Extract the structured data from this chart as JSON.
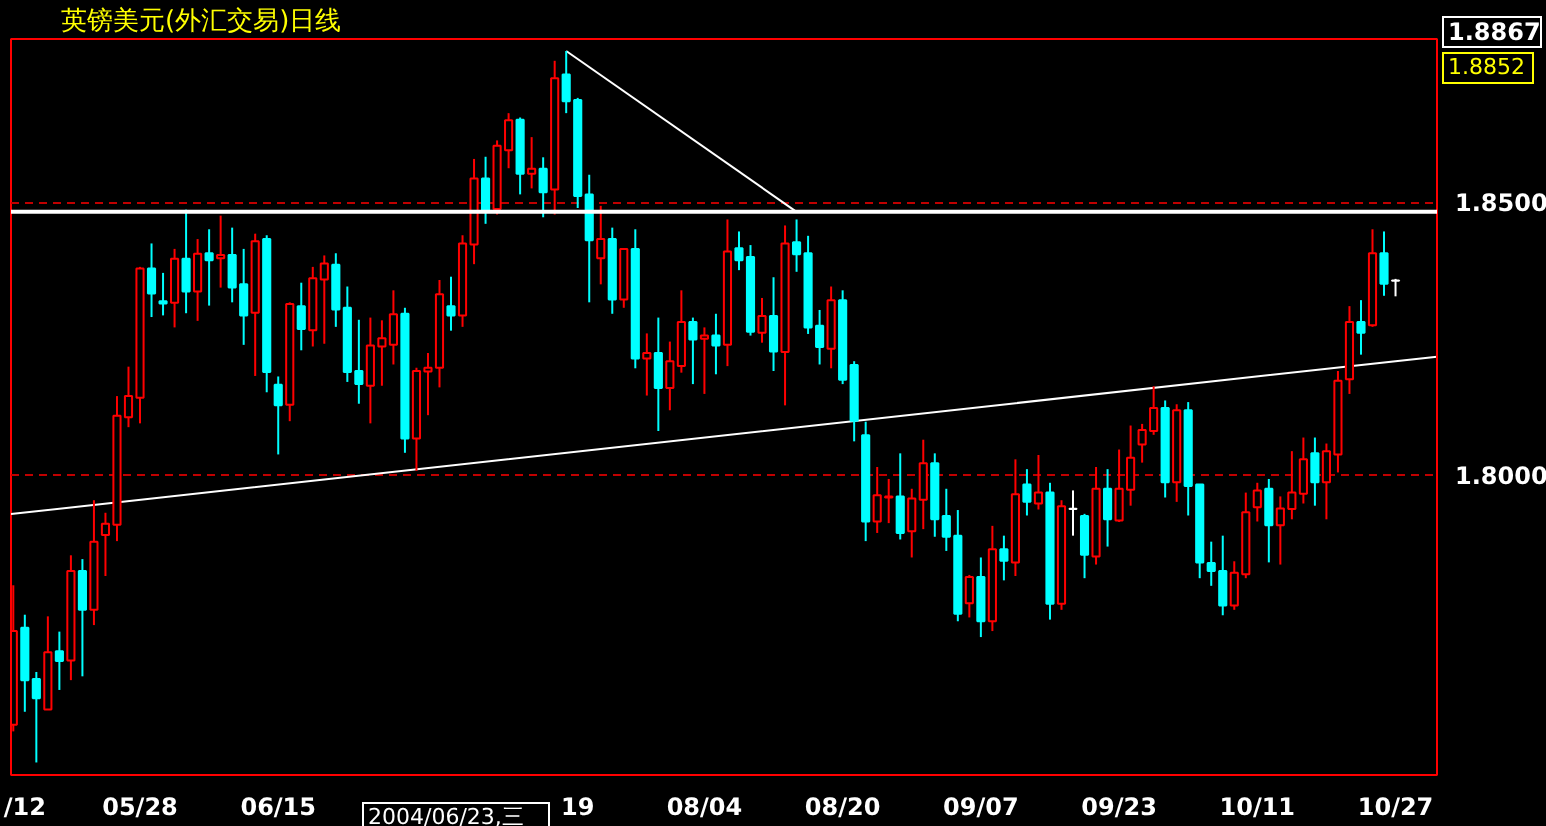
{
  "chart_data": {
    "type": "candlestick",
    "title": "英镑美元(外汇交易)日线",
    "categories": [
      null,
      "/12",
      null,
      null,
      null,
      null,
      null,
      null,
      null,
      null,
      null,
      "05/28",
      null,
      null,
      null,
      null,
      null,
      null,
      null,
      null,
      null,
      null,
      null,
      "06/15",
      null,
      null,
      null,
      null,
      null,
      null,
      null,
      null,
      null,
      null,
      null,
      null,
      null,
      null,
      null,
      null,
      null,
      null,
      null,
      null,
      null,
      null,
      null,
      null,
      null,
      "19",
      null,
      null,
      null,
      null,
      null,
      null,
      null,
      null,
      null,
      null,
      "08/04",
      null,
      null,
      null,
      null,
      null,
      null,
      null,
      null,
      null,
      null,
      null,
      "08/20",
      null,
      null,
      null,
      null,
      null,
      null,
      null,
      null,
      null,
      null,
      null,
      "09/07",
      null,
      null,
      null,
      null,
      null,
      null,
      null,
      null,
      null,
      null,
      null,
      "09/23",
      null,
      null,
      null,
      null,
      null,
      null,
      null,
      null,
      null,
      null,
      null,
      "10/11",
      null,
      null,
      null,
      null,
      null,
      null,
      null,
      null,
      null,
      null,
      null,
      "10/27"
    ],
    "ohlc": [
      [
        1.7541,
        1.7797,
        1.7529,
        1.7713
      ],
      [
        1.7719,
        1.7743,
        1.7565,
        1.7623
      ],
      [
        1.7625,
        1.7638,
        1.7472,
        1.759
      ],
      [
        1.7569,
        1.774,
        1.7569,
        1.7674
      ],
      [
        1.7676,
        1.7712,
        1.7605,
        1.7658
      ],
      [
        1.7659,
        1.7852,
        1.7623,
        1.7823
      ],
      [
        1.7823,
        1.7845,
        1.763,
        1.7752
      ],
      [
        1.7752,
        1.7953,
        1.7724,
        1.7877
      ],
      [
        1.7889,
        1.793,
        1.7814,
        1.791
      ],
      [
        1.7908,
        1.8144,
        1.7878,
        1.8108
      ],
      [
        1.8105,
        1.8198,
        1.8087,
        1.8144
      ],
      [
        1.8141,
        1.8381,
        1.8094,
        1.8378
      ],
      [
        1.8378,
        1.8424,
        1.8289,
        1.8332
      ],
      [
        1.8318,
        1.837,
        1.8292,
        1.8314
      ],
      [
        1.8315,
        1.8414,
        1.827,
        1.8396
      ],
      [
        1.8396,
        1.8486,
        1.8296,
        1.8336
      ],
      [
        1.8336,
        1.8432,
        1.8282,
        1.8405
      ],
      [
        1.8406,
        1.845,
        1.831,
        1.8393
      ],
      [
        1.8397,
        1.8475,
        1.8343,
        1.8403
      ],
      [
        1.8403,
        1.8453,
        1.8316,
        1.8343
      ],
      [
        1.8349,
        1.8414,
        1.8238,
        1.8292
      ],
      [
        1.8297,
        1.8442,
        1.8181,
        1.8428
      ],
      [
        1.8432,
        1.8439,
        1.8151,
        1.8188
      ],
      [
        1.8165,
        1.818,
        1.8037,
        1.8127
      ],
      [
        1.8128,
        1.8316,
        1.8098,
        1.8313
      ],
      [
        1.8309,
        1.8352,
        1.8228,
        1.8267
      ],
      [
        1.8265,
        1.8381,
        1.8235,
        1.836
      ],
      [
        1.8358,
        1.8402,
        1.824,
        1.8387
      ],
      [
        1.8385,
        1.8406,
        1.8271,
        1.8303
      ],
      [
        1.8306,
        1.8345,
        1.817,
        1.8188
      ],
      [
        1.819,
        1.8284,
        1.813,
        1.8166
      ],
      [
        1.8163,
        1.8288,
        1.8094,
        1.8237
      ],
      [
        1.8235,
        1.8283,
        1.8163,
        1.825
      ],
      [
        1.8238,
        1.8338,
        1.8202,
        1.8294
      ],
      [
        1.8295,
        1.8306,
        1.804,
        1.8066
      ],
      [
        1.8066,
        1.8196,
        1.8007,
        1.819
      ],
      [
        1.8189,
        1.8223,
        1.8109,
        1.8196
      ],
      [
        1.8196,
        1.8357,
        1.816,
        1.8331
      ],
      [
        1.8309,
        1.8363,
        1.8264,
        1.8292
      ],
      [
        1.8292,
        1.8439,
        1.8271,
        1.8424
      ],
      [
        1.8422,
        1.8579,
        1.8386,
        1.8543
      ],
      [
        1.8543,
        1.8583,
        1.846,
        1.8484
      ],
      [
        1.8487,
        1.8613,
        1.8477,
        1.8603
      ],
      [
        1.8595,
        1.8663,
        1.8562,
        1.865
      ],
      [
        1.8651,
        1.8655,
        1.8514,
        1.8552
      ],
      [
        1.8552,
        1.8619,
        1.8525,
        1.8561
      ],
      [
        1.8561,
        1.8582,
        1.8472,
        1.8518
      ],
      [
        1.8523,
        1.8759,
        1.8477,
        1.8727
      ],
      [
        1.8734,
        1.8777,
        1.8663,
        1.8685
      ],
      [
        1.8687,
        1.8691,
        1.8489,
        1.8511
      ],
      [
        1.8514,
        1.855,
        1.8316,
        1.843
      ],
      [
        1.8397,
        1.8493,
        1.8349,
        1.8432
      ],
      [
        1.8432,
        1.8453,
        1.8295,
        1.8321
      ],
      [
        1.8321,
        1.8414,
        1.8306,
        1.8414
      ],
      [
        1.8414,
        1.845,
        1.8195,
        1.8213
      ],
      [
        1.8213,
        1.8259,
        1.8145,
        1.8223
      ],
      [
        1.8223,
        1.8288,
        1.808,
        1.8159
      ],
      [
        1.8159,
        1.8244,
        1.8118,
        1.8208
      ],
      [
        1.8199,
        1.8338,
        1.8187,
        1.828
      ],
      [
        1.828,
        1.8288,
        1.8166,
        1.8248
      ],
      [
        1.8249,
        1.827,
        1.8148,
        1.8255
      ],
      [
        1.8255,
        1.8295,
        1.8184,
        1.8237
      ],
      [
        1.8238,
        1.8468,
        1.8199,
        1.8409
      ],
      [
        1.8415,
        1.8446,
        1.8375,
        1.8393
      ],
      [
        1.8399,
        1.8421,
        1.8255,
        1.8262
      ],
      [
        1.826,
        1.8324,
        1.8242,
        1.8291
      ],
      [
        1.8291,
        1.8362,
        1.819,
        1.8226
      ],
      [
        1.8225,
        1.8457,
        1.8127,
        1.8424
      ],
      [
        1.8426,
        1.8468,
        1.8372,
        1.8404
      ],
      [
        1.8406,
        1.8438,
        1.8258,
        1.827
      ],
      [
        1.8273,
        1.8302,
        1.8202,
        1.8234
      ],
      [
        1.8231,
        1.8345,
        1.8195,
        1.832
      ],
      [
        1.832,
        1.8338,
        1.8166,
        1.8174
      ],
      [
        1.8201,
        1.8208,
        1.8061,
        1.8099
      ],
      [
        1.8072,
        1.8097,
        1.7878,
        1.7914
      ],
      [
        1.7914,
        1.8014,
        1.7893,
        1.7962
      ],
      [
        1.7958,
        1.7992,
        1.7911,
        1.796
      ],
      [
        1.796,
        1.8039,
        1.7881,
        1.7893
      ],
      [
        1.7896,
        1.7974,
        1.7848,
        1.7956
      ],
      [
        1.7954,
        1.8064,
        1.79,
        1.8021
      ],
      [
        1.8021,
        1.8039,
        1.7886,
        1.7918
      ],
      [
        1.7924,
        1.7974,
        1.786,
        1.7886
      ],
      [
        1.7888,
        1.7935,
        1.7731,
        1.7745
      ],
      [
        1.7764,
        1.7816,
        1.7738,
        1.7812
      ],
      [
        1.7812,
        1.7848,
        1.7702,
        1.7731
      ],
      [
        1.7731,
        1.7906,
        1.7713,
        1.7863
      ],
      [
        1.7863,
        1.7888,
        1.7806,
        1.7842
      ],
      [
        1.7839,
        1.8028,
        1.7814,
        1.7964
      ],
      [
        1.7982,
        1.801,
        1.7925,
        1.795
      ],
      [
        1.7947,
        1.8036,
        1.7936,
        1.7967
      ],
      [
        1.7967,
        1.7985,
        1.7734,
        1.7763
      ],
      [
        1.7763,
        1.7953,
        1.7752,
        1.7942
      ],
      [
        1.7937,
        1.7971,
        1.7888,
        1.7937
      ],
      [
        1.7924,
        1.7928,
        1.781,
        1.7853
      ],
      [
        1.785,
        1.8014,
        1.7835,
        1.7974
      ],
      [
        1.7974,
        1.801,
        1.7868,
        1.7918
      ],
      [
        1.7916,
        1.8046,
        1.7913,
        1.7974
      ],
      [
        1.7972,
        1.809,
        1.7943,
        1.8031
      ],
      [
        1.8055,
        1.8093,
        1.8022,
        1.8082
      ],
      [
        1.808,
        1.8162,
        1.8073,
        1.8122
      ],
      [
        1.8122,
        1.8136,
        1.7958,
        1.7986
      ],
      [
        1.7986,
        1.8129,
        1.795,
        1.8118
      ],
      [
        1.8118,
        1.8133,
        1.7925,
        1.7979
      ],
      [
        1.7982,
        1.7982,
        1.781,
        1.7839
      ],
      [
        1.7838,
        1.7877,
        1.7796,
        1.7823
      ],
      [
        1.7823,
        1.7888,
        1.7742,
        1.776
      ],
      [
        1.776,
        1.7841,
        1.7752,
        1.782
      ],
      [
        1.7817,
        1.7967,
        1.781,
        1.7931
      ],
      [
        1.794,
        1.7985,
        1.7914,
        1.7971
      ],
      [
        1.7974,
        1.7992,
        1.7839,
        1.7907
      ],
      [
        1.7907,
        1.796,
        1.7835,
        1.7938
      ],
      [
        1.7937,
        1.8043,
        1.7918,
        1.7967
      ],
      [
        1.7965,
        1.8068,
        1.7947,
        1.8028
      ],
      [
        1.8039,
        1.8068,
        1.7943,
        1.7986
      ],
      [
        1.7986,
        1.8057,
        1.7918,
        1.8043
      ],
      [
        1.8037,
        1.819,
        1.8004,
        1.8172
      ],
      [
        1.8175,
        1.8309,
        1.8148,
        1.828
      ],
      [
        1.828,
        1.832,
        1.822,
        1.826
      ],
      [
        1.8274,
        1.845,
        1.8271,
        1.8406
      ],
      [
        1.8406,
        1.8446,
        1.8328,
        1.835
      ],
      [
        1.8356,
        1.8359,
        1.8327,
        1.8356
      ]
    ],
    "colors": [
      "#ff0000",
      "#00ffff",
      "#00ffff",
      "#ff0000",
      "#00ffff",
      "#ff0000",
      "#00ffff",
      "#ff0000",
      "#ff0000",
      "#ff0000",
      "#ff0000",
      "#ff0000",
      "#00ffff",
      "#00ffff",
      "#ff0000",
      "#00ffff",
      "#ff0000",
      "#00ffff",
      "#ff0000",
      "#00ffff",
      "#00ffff",
      "#ff0000",
      "#00ffff",
      "#00ffff",
      "#ff0000",
      "#00ffff",
      "#ff0000",
      "#ff0000",
      "#00ffff",
      "#00ffff",
      "#00ffff",
      "#ff0000",
      "#ff0000",
      "#ff0000",
      "#00ffff",
      "#ff0000",
      "#ff0000",
      "#ff0000",
      "#00ffff",
      "#ff0000",
      "#ff0000",
      "#00ffff",
      "#ff0000",
      "#ff0000",
      "#00ffff",
      "#ff0000",
      "#00ffff",
      "#ff0000",
      "#00ffff",
      "#00ffff",
      "#00ffff",
      "#ff0000",
      "#00ffff",
      "#ff0000",
      "#00ffff",
      "#ff0000",
      "#00ffff",
      "#ff0000",
      "#ff0000",
      "#00ffff",
      "#ff0000",
      "#00ffff",
      "#ff0000",
      "#00ffff",
      "#00ffff",
      "#ff0000",
      "#00ffff",
      "#ff0000",
      "#00ffff",
      "#00ffff",
      "#00ffff",
      "#ff0000",
      "#00ffff",
      "#00ffff",
      "#00ffff",
      "#ff0000",
      "#ff0000",
      "#00ffff",
      "#ff0000",
      "#ff0000",
      "#00ffff",
      "#00ffff",
      "#00ffff",
      "#ff0000",
      "#00ffff",
      "#ff0000",
      "#00ffff",
      "#ff0000",
      "#00ffff",
      "#ff0000",
      "#00ffff",
      "#ff0000",
      "#ffffff",
      "#00ffff",
      "#ff0000",
      "#00ffff",
      "#ff0000",
      "#ff0000",
      "#ff0000",
      "#ff0000",
      "#00ffff",
      "#ff0000",
      "#00ffff",
      "#00ffff",
      "#00ffff",
      "#00ffff",
      "#ff0000",
      "#ff0000",
      "#ff0000",
      "#00ffff",
      "#ff0000",
      "#ff0000",
      "#ff0000",
      "#00ffff",
      "#ff0000",
      "#ff0000",
      "#ff0000",
      "#00ffff",
      "#ff0000",
      "#00ffff",
      "#ffffff"
    ],
    "ylim": [
      1.7449,
      1.8799
    ],
    "yticks": [
      {
        "value": 1.8,
        "label": "1.8000"
      },
      {
        "value": 1.85,
        "label": "1.8500"
      }
    ],
    "grid": "y",
    "series": [
      {
        "type": "line",
        "color": "#ffffff",
        "values": [
          1.7928,
          null,
          null,
          null,
          null,
          null,
          null,
          null,
          null,
          null,
          null,
          null,
          null,
          null,
          null,
          null,
          null,
          null,
          null,
          null,
          null,
          null,
          null,
          null,
          null,
          null,
          null,
          null,
          null,
          null,
          null,
          null,
          null,
          null,
          null,
          null,
          null,
          null,
          null,
          null,
          null,
          null,
          null,
          null,
          null,
          null,
          null,
          null,
          null,
          null,
          null,
          null,
          null,
          null,
          null,
          null,
          null,
          null,
          null,
          null,
          null,
          null,
          null,
          null,
          null,
          null,
          null,
          null,
          null,
          null,
          null,
          null,
          null,
          null,
          null,
          null,
          null,
          null,
          null,
          null,
          null,
          null,
          null,
          null,
          null,
          null,
          null,
          null,
          null,
          null,
          null,
          null,
          null,
          null,
          null,
          null,
          null,
          null,
          null,
          null,
          null,
          null,
          null,
          null,
          null,
          null,
          null,
          null,
          null,
          null,
          null,
          null,
          null,
          null,
          null,
          null,
          null,
          null,
          null,
          null,
          1.8208
        ]
      },
      {
        "type": "line",
        "color": "#ffffff",
        "values": [
          null,
          null,
          null,
          null,
          null,
          null,
          null,
          null,
          null,
          null,
          null,
          null,
          null,
          null,
          null,
          null,
          null,
          null,
          null,
          null,
          null,
          null,
          null,
          null,
          null,
          null,
          null,
          null,
          null,
          null,
          null,
          null,
          null,
          null,
          null,
          null,
          null,
          null,
          null,
          null,
          null,
          null,
          null,
          null,
          null,
          null,
          null,
          null,
          1.8777,
          null,
          null,
          null,
          null,
          null,
          null,
          null,
          null,
          null,
          null,
          null,
          null,
          null,
          null,
          null,
          null,
          null,
          null,
          null,
          1.8482,
          null,
          null,
          null,
          null,
          null,
          null,
          null,
          null,
          null,
          null,
          null,
          null,
          null,
          null,
          null,
          null,
          null,
          null,
          null,
          null,
          null,
          null,
          null,
          null,
          null,
          null,
          null,
          null,
          null,
          null,
          null,
          null,
          null,
          null,
          null,
          null,
          null,
          null,
          null,
          null,
          null,
          null,
          null,
          null,
          null,
          null,
          null,
          null,
          null,
          null,
          null,
          null
        ]
      }
    ],
    "ref_lines": [
      {
        "axis": "y",
        "value": 1.8482,
        "color": "#ffffff"
      }
    ],
    "annotations": [
      "2004/06/23,三",
      "1.8867",
      "1.8852"
    ]
  }
}
